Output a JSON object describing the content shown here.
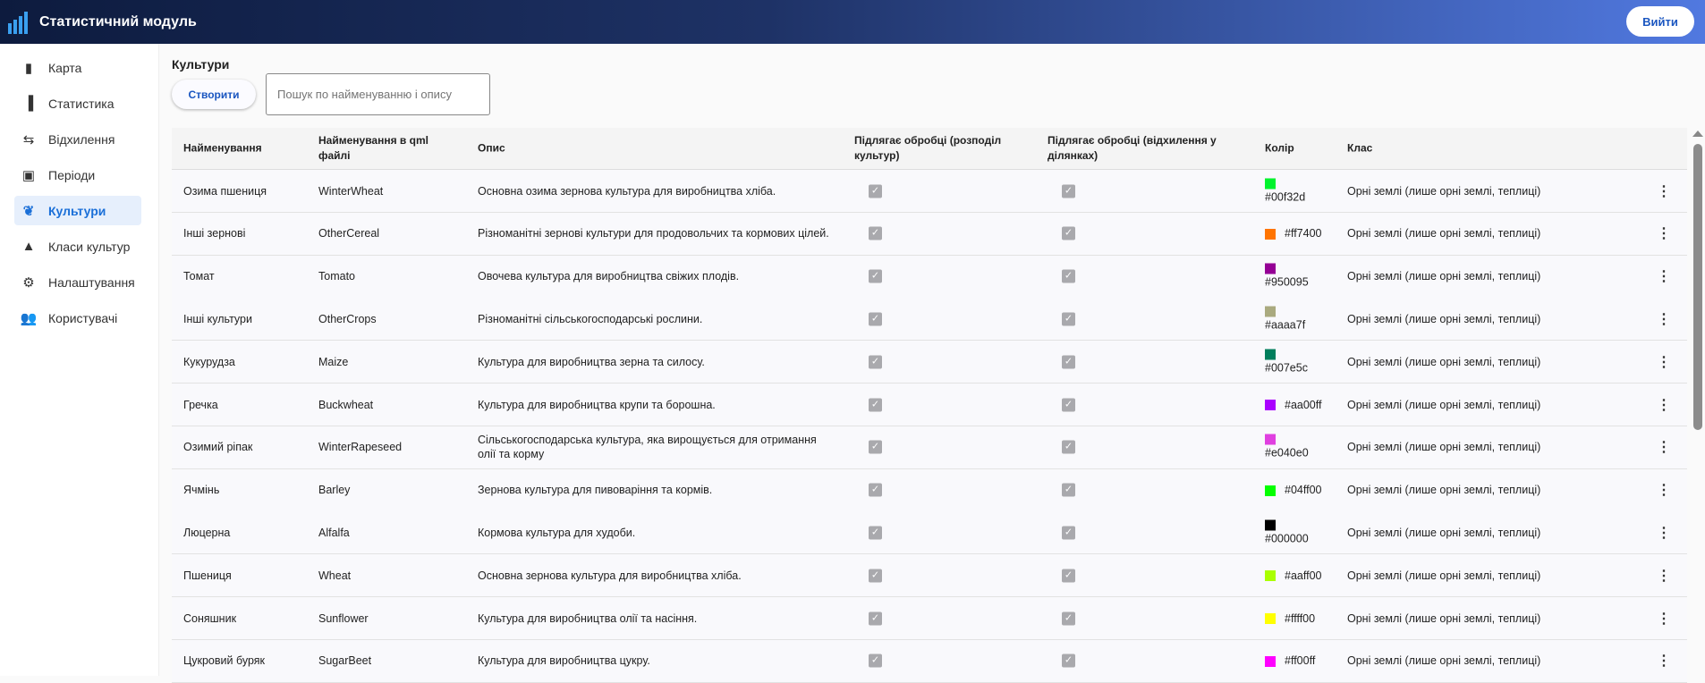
{
  "app": {
    "title": "Статистичний модуль",
    "logout": "Вийти"
  },
  "sidebar": {
    "items": [
      {
        "label": "Карта",
        "icon": "map-icon"
      },
      {
        "label": "Статистика",
        "icon": "bar-chart-icon"
      },
      {
        "label": "Відхилення",
        "icon": "compare-arrows-icon"
      },
      {
        "label": "Періоди",
        "icon": "calendar-icon"
      },
      {
        "label": "Культури",
        "icon": "leaf-icon",
        "active": true
      },
      {
        "label": "Класи культур",
        "icon": "shapes-icon"
      },
      {
        "label": "Налаштування",
        "icon": "gear-icon"
      },
      {
        "label": "Користувачі",
        "icon": "users-icon"
      }
    ]
  },
  "page": {
    "title": "Культури",
    "create": "Створити",
    "search_placeholder": "Пошук по найменуванню і опису"
  },
  "table": {
    "headers": [
      "Найменування",
      "Найменування в qml файлі",
      "Опис",
      "Підлягає обробці (розподіл культур)",
      "Підлягає обробці (відхилення у ділянках)",
      "Колір",
      "Клас"
    ],
    "rows": [
      {
        "name": "Озима пшениця",
        "qml": "WinterWheat",
        "desc": "Основна озима зернова культура для виробництва хліба.",
        "c1": true,
        "c2": true,
        "color": "#00f32d",
        "cls": "Орні землі (лише орні землі, теплиці)"
      },
      {
        "name": "Інші зернові",
        "qml": "OtherCereal",
        "desc": "Різноманітні зернові культури для продовольчих та кормових цілей.",
        "c1": true,
        "c2": true,
        "color": "#ff7400",
        "cls": "Орні землі (лише орні землі, теплиці)"
      },
      {
        "name": "Томат",
        "qml": "Tomato",
        "desc": "Овочева культура для виробництва свіжих плодів.",
        "c1": true,
        "c2": true,
        "color": "#950095",
        "cls": "Орні землі (лише орні землі, теплиці)"
      },
      {
        "name": "Інші культури",
        "qml": "OtherCrops",
        "desc": "Різноманітні сільськогосподарські рослини.",
        "c1": true,
        "c2": true,
        "color": "#aaaa7f",
        "cls": "Орні землі (лише орні землі, теплиці)"
      },
      {
        "name": "Кукурудза",
        "qml": "Maize",
        "desc": "Культура для виробництва зерна та силосу.",
        "c1": true,
        "c2": true,
        "color": "#007e5c",
        "cls": "Орні землі (лише орні землі, теплиці)"
      },
      {
        "name": "Гречка",
        "qml": "Buckwheat",
        "desc": "Культура для виробництва крупи та борошна.",
        "c1": true,
        "c2": true,
        "color": "#aa00ff",
        "cls": "Орні землі (лише орні землі, теплиці)"
      },
      {
        "name": "Озимий ріпак",
        "qml": "WinterRapeseed",
        "desc": "Сільськогосподарська культура, яка вирощується для отримання олії та корму",
        "c1": true,
        "c2": true,
        "color": "#e040e0",
        "cls": "Орні землі (лише орні землі, теплиці)"
      },
      {
        "name": "Ячмінь",
        "qml": "Barley",
        "desc": "Зернова культура для пивоваріння та кормів.",
        "c1": true,
        "c2": true,
        "color": "#04ff00",
        "cls": "Орні землі (лише орні землі, теплиці)"
      },
      {
        "name": "Люцерна",
        "qml": "Alfalfa",
        "desc": "Кормова культура для худоби.",
        "c1": true,
        "c2": true,
        "color": "#000000",
        "cls": "Орні землі (лише орні землі, теплиці)"
      },
      {
        "name": "Пшениця",
        "qml": "Wheat",
        "desc": "Основна зернова культура для виробництва хліба.",
        "c1": true,
        "c2": true,
        "color": "#aaff00",
        "cls": "Орні землі (лише орні землі, теплиці)"
      },
      {
        "name": "Соняшник",
        "qml": "Sunflower",
        "desc": "Культура для виробництва олії та насіння.",
        "c1": true,
        "c2": true,
        "color": "#ffff00",
        "cls": "Орні землі (лише орні землі, теплиці)"
      },
      {
        "name": "Цукровий буряк",
        "qml": "SugarBeet",
        "desc": "Культура для виробництва цукру.",
        "c1": true,
        "c2": true,
        "color": "#ff00ff",
        "cls": "Орні землі (лише орні землі, теплиці)"
      }
    ]
  }
}
